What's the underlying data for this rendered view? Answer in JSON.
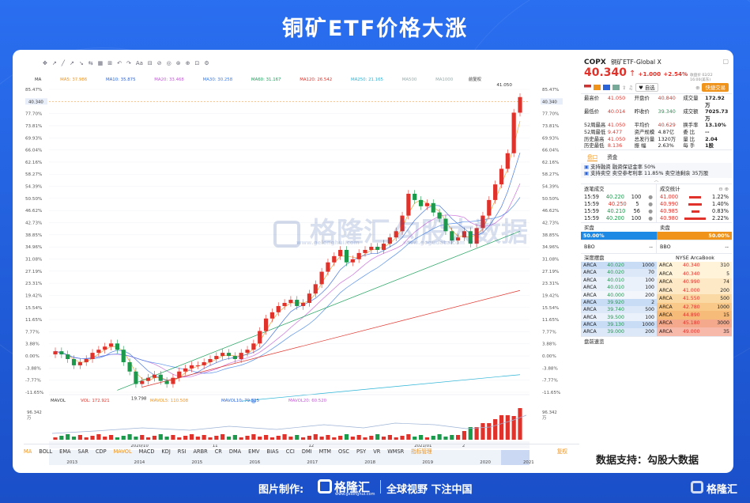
{
  "title": "铜矿ETF价格大涨",
  "data_source": "数据支持：勾股大数据",
  "footer": {
    "made_by": "图片制作:",
    "brand": "格隆汇",
    "brand_url": "www.gelonghui.com",
    "slogan": "全球视野 下注中国",
    "corner_brand": "格隆汇"
  },
  "watermarks": {
    "logo_text": "格隆汇",
    "logo_url": "www.gelonghui.com",
    "gugu": "勾股大数据",
    "gugu_url": "www.gogudata.com"
  },
  "toolbar": {
    "icons": [
      "✥",
      "↗",
      "╱",
      "↗",
      "↘",
      "⇆",
      "▦",
      "⊞",
      "↶",
      "↷",
      "Aa",
      "⊟",
      "⊘",
      "◎",
      "⊛",
      "⊕",
      "⊡",
      "⚙"
    ]
  },
  "ma_labels": {
    "ma": "MA",
    "ma5": "MA5: 37.986",
    "ma10": "MA10: 35.875",
    "ma20": "MA20: 33.468",
    "ma30": "MA30: 30.258",
    "ma60": "MA60: 31.167",
    "ma120": "MA120: 26.542",
    "ma250": "MA250: 21.165",
    "ma500": "MA500",
    "ma1000": "MA1000",
    "save": "+",
    "mode": "前复权"
  },
  "vol_labels": {
    "vol": "MAVOL",
    "v1": "VOL: 172.921",
    "v5": "MAVOL5: 110.508",
    "v10": "MAVOL10: 79.525",
    "v20": "MAVOL20: 60.520",
    "vmax": "96.342",
    "vunit": "万",
    "vmax_r": "96.342",
    "vunit_r": "万"
  },
  "price_marker": {
    "value": "40.340",
    "value_r": "40.340",
    "top": "41.050",
    "low": "19.798"
  },
  "colors": {
    "up": "#e0322a",
    "down": "#1a9a4a",
    "accent": "#2b63d9",
    "orange": "#f0931b",
    "blue_bg": "#1e88e5"
  },
  "panel": {
    "ticker": "COPX",
    "name": "铜矿ETF-Global X",
    "price": "40.340",
    "arrow": "↑",
    "change": "+1.000",
    "pct": "+2.54%",
    "closed": "收盘价 02/22 16:00(美东)",
    "actions": {
      "watch": "自选",
      "trade": "快捷交易"
    },
    "stats": [
      [
        "最高价",
        "41.050",
        "开盘价",
        "40.840",
        "成交量",
        "172.92万"
      ],
      [
        "最低价",
        "40.014",
        "昨收价",
        "39.340",
        "成交额",
        "7025.73万"
      ],
      [
        "52周最高",
        "41.050",
        "平均价",
        "40.629",
        "换手率",
        "13.10%"
      ],
      [
        "52周最低",
        "9.477",
        "资产规模",
        "4.87亿",
        "委 比",
        "--"
      ],
      [
        "历史最高",
        "41.050",
        "总发行量",
        "1320万",
        "量 比",
        "2.04"
      ],
      [
        "历史最低",
        "8.136",
        "振 幅",
        "2.63%",
        "每 手",
        "1股"
      ]
    ],
    "tabs": [
      "盘口",
      "资金"
    ],
    "notes": [
      "支持融资 融资保证金率 50%",
      "支持卖空 卖空参考利率 11.85% 卖空池剩余 35万股"
    ],
    "trades_title": "逐笔成交",
    "trades": [
      [
        "15:59",
        "40.220",
        "100"
      ],
      [
        "15:59",
        "40.250",
        "5"
      ],
      [
        "15:59",
        "40.210",
        "56"
      ],
      [
        "15:59",
        "40.200",
        "100"
      ]
    ],
    "stat_title": "成交统计",
    "stat_rows": [
      [
        "41.000",
        "1.22%"
      ],
      [
        "40.990",
        "1.40%"
      ],
      [
        "40.985",
        "0.83%"
      ],
      [
        "40.980",
        "2.22%"
      ]
    ],
    "buy_label": "买盘",
    "sell_label": "卖盘",
    "buy_pct": "50.00%",
    "sell_pct": "50.00%",
    "bbo": [
      "BBO",
      "--",
      "BBO",
      "--"
    ],
    "depth_title": "深度摆盘",
    "depth_ex": "NYSE ArcaBook",
    "bids": [
      [
        "ARCA",
        "40.020",
        "1000"
      ],
      [
        "ARCA",
        "40.020",
        "70"
      ],
      [
        "ARCA",
        "40.010",
        "100"
      ],
      [
        "ARCA",
        "40.010",
        "100"
      ],
      [
        "ARCA",
        "40.000",
        "200"
      ],
      [
        "ARCA",
        "39.920",
        "2"
      ],
      [
        "ARCA",
        "39.740",
        "500"
      ],
      [
        "ARCA",
        "39.500",
        "100"
      ],
      [
        "ARCA",
        "39.130",
        "1000"
      ],
      [
        "ARCA",
        "39.000",
        "200"
      ]
    ],
    "asks": [
      [
        "ARCA",
        "40.340",
        "310"
      ],
      [
        "ARCA",
        "40.340",
        "5"
      ],
      [
        "ARCA",
        "40.990",
        "74"
      ],
      [
        "ARCA",
        "41.000",
        "200"
      ],
      [
        "ARCA",
        "41.550",
        "500"
      ],
      [
        "ARCA",
        "42.780",
        "1000"
      ],
      [
        "ARCA",
        "44.890",
        "15"
      ],
      [
        "ARCA",
        "45.180",
        "3000"
      ],
      [
        "ARCA",
        "49.000",
        "35"
      ]
    ],
    "news": "盘前速览"
  },
  "bottom_tabs": [
    "MA",
    "BOLL",
    "EMA",
    "SAR",
    "CDP",
    "MAVOL",
    "MACD",
    "KDJ",
    "RSI",
    "ARBR",
    "CR",
    "DMA",
    "EMV",
    "BIAS",
    "CCI",
    "DMI",
    "MTM",
    "OSC",
    "PSY",
    "VR",
    "WMSR",
    "指标管理",
    "复权"
  ],
  "chart_data": {
    "type": "candlestick",
    "title": "",
    "y_ticks": [
      "85.47%",
      "81.62%",
      "77.70%",
      "73.81%",
      "69.93%",
      "66.04%",
      "62.16%",
      "58.27%",
      "54.39%",
      "50.50%",
      "46.62%",
      "42.73%",
      "38.85%",
      "34.96%",
      "31.08%",
      "27.19%",
      "23.31%",
      "19.42%",
      "15.54%",
      "11.65%",
      "7.77%",
      "3.88%",
      "0.00%",
      "-3.88%",
      "-7.77%",
      "-11.65%"
    ],
    "y_ticks_right": [
      "85.47%",
      "81.62%",
      "77.70%",
      "73.81%",
      "69.93%",
      "66.04%",
      "62.16%",
      "58.27%",
      "54.39%",
      "50.50%",
      "46.62%",
      "42.73%",
      "38.85%",
      "34.96%",
      "31.08%",
      "27.19%",
      "23.31%",
      "19.42%",
      "15.54%",
      "11.65%",
      "7.77%",
      "3.88%",
      "0.00%",
      "-3.88%",
      "-7.77%",
      "-11.65%"
    ],
    "ylim_pct": [
      -11.65,
      85.47
    ],
    "x_ticks_top": [
      [
        "2020/10",
        0.17
      ],
      [
        "11",
        0.34
      ],
      [
        "12",
        0.54
      ],
      [
        "2021/01",
        0.76
      ],
      [
        "2",
        0.86
      ]
    ],
    "x_ticks_bottom": [
      [
        "2013",
        0.05
      ],
      [
        "2014",
        0.19
      ],
      [
        "2015",
        0.31
      ],
      [
        "2016",
        0.43
      ],
      [
        "2017",
        0.55
      ],
      [
        "2018",
        0.67
      ],
      [
        "2019",
        0.79
      ],
      [
        "2020",
        0.91
      ],
      [
        "2021",
        1.0
      ]
    ],
    "close_pct": [
      1.5,
      0.5,
      -1,
      -3,
      -2,
      -1,
      1,
      2,
      3,
      4,
      2,
      -2,
      -5,
      -9,
      -8,
      -7,
      -6,
      -8,
      -9,
      -7,
      -5,
      -4,
      -3,
      -3,
      -2,
      -1,
      0,
      1,
      0,
      -1,
      1,
      2,
      4,
      8,
      12,
      14,
      16,
      17,
      18,
      16,
      17,
      20,
      23,
      27,
      30,
      32,
      34,
      30,
      31,
      33,
      34,
      35,
      34,
      36,
      38,
      40,
      45,
      52,
      50,
      48,
      49,
      46,
      44,
      40,
      37,
      38,
      40,
      36,
      41,
      45,
      50,
      55,
      60,
      65,
      78,
      83
    ]
  }
}
